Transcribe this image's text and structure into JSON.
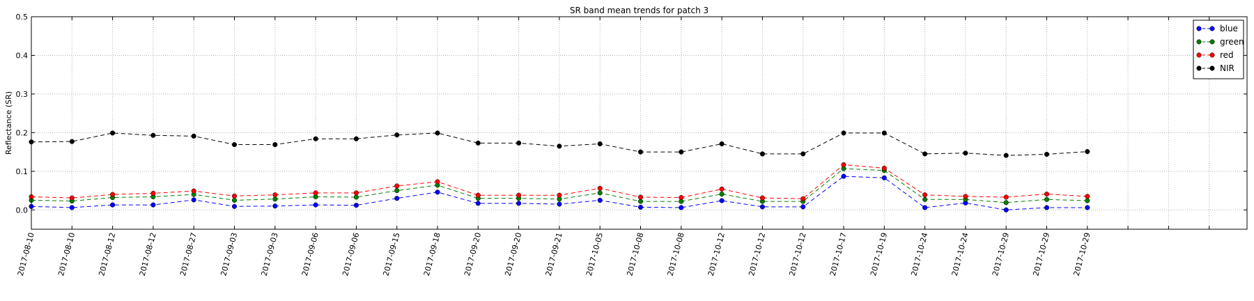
{
  "chart_data": {
    "type": "line",
    "title": "SR band mean trends for patch 3",
    "xlabel": "",
    "ylabel": "Reflectance (SR)",
    "ylim": [
      -0.05,
      0.5
    ],
    "yticks": [
      "0.0",
      "0.1",
      "0.2",
      "0.3",
      "0.4",
      "0.5"
    ],
    "grid": true,
    "legend_position": "top-right",
    "categories": [
      "2017-08-10",
      "2017-08-10",
      "2017-08-12",
      "2017-08-12",
      "2017-08-27",
      "2017-09-03",
      "2017-09-03",
      "2017-09-06",
      "2017-09-06",
      "2017-09-15",
      "2017-09-18",
      "2017-09-20",
      "2017-09-20",
      "2017-09-21",
      "2017-10-05",
      "2017-10-08",
      "2017-10-08",
      "2017-10-12",
      "2017-10-12",
      "2017-10-12",
      "2017-10-17",
      "2017-10-19",
      "2017-10-24",
      "2017-10-24",
      "2017-10-29",
      "2017-10-29",
      "2017-10-29"
    ],
    "series": [
      {
        "name": "blue",
        "color": "#0000ff",
        "values": [
          0.009,
          0.006,
          0.013,
          0.013,
          0.026,
          0.009,
          0.01,
          0.013,
          0.012,
          0.03,
          0.046,
          0.017,
          0.017,
          0.015,
          0.025,
          0.007,
          0.006,
          0.024,
          0.008,
          0.008,
          0.087,
          0.083,
          0.006,
          0.018,
          0.0,
          0.006,
          0.006
        ]
      },
      {
        "name": "green",
        "color": "#007f00",
        "values": [
          0.025,
          0.023,
          0.032,
          0.034,
          0.04,
          0.025,
          0.028,
          0.034,
          0.033,
          0.05,
          0.064,
          0.03,
          0.03,
          0.028,
          0.044,
          0.022,
          0.022,
          0.041,
          0.022,
          0.022,
          0.107,
          0.102,
          0.027,
          0.027,
          0.019,
          0.027,
          0.024
        ]
      },
      {
        "name": "red",
        "color": "#ff0000",
        "values": [
          0.034,
          0.031,
          0.04,
          0.043,
          0.049,
          0.036,
          0.039,
          0.044,
          0.044,
          0.062,
          0.073,
          0.038,
          0.038,
          0.038,
          0.056,
          0.033,
          0.032,
          0.054,
          0.031,
          0.029,
          0.117,
          0.108,
          0.039,
          0.035,
          0.033,
          0.041,
          0.035
        ]
      },
      {
        "name": "NIR",
        "color": "#000000",
        "values": [
          0.176,
          0.177,
          0.199,
          0.193,
          0.191,
          0.169,
          0.169,
          0.184,
          0.184,
          0.194,
          0.199,
          0.173,
          0.173,
          0.165,
          0.171,
          0.15,
          0.15,
          0.171,
          0.145,
          0.145,
          0.199,
          0.199,
          0.145,
          0.147,
          0.141,
          0.144,
          0.151
        ]
      }
    ]
  }
}
